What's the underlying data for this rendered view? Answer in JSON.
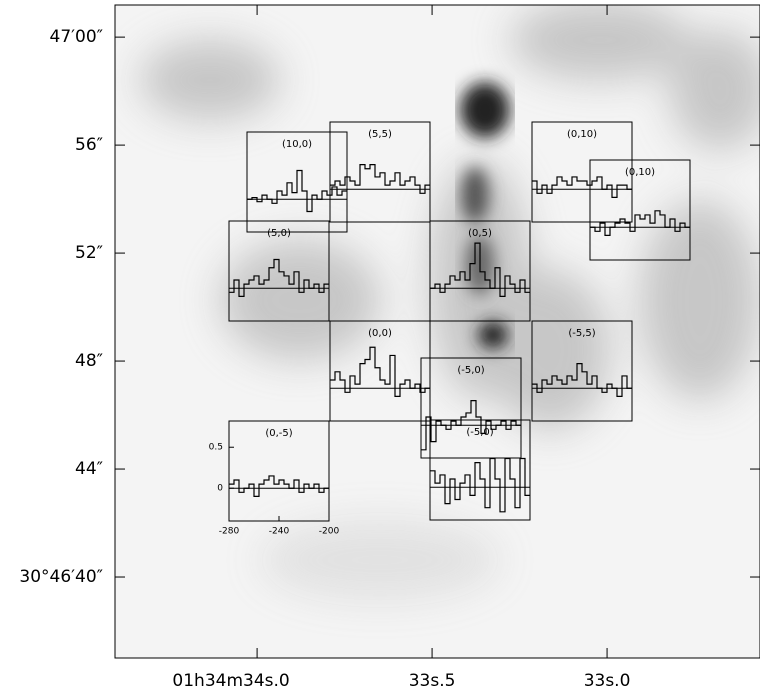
{
  "image": {
    "xlim": [
      34.406,
      32.563
    ],
    "ylim": [
      37.0,
      61.19
    ],
    "xticks": [
      {
        "value": 34.0,
        "label": "01h34m34s.0"
      },
      {
        "value": 33.5,
        "label": "33s.5"
      },
      {
        "value": 33.0,
        "label": "33s.0"
      }
    ],
    "yticks": [
      {
        "value": 60,
        "label": "47′00″"
      },
      {
        "value": 56,
        "label": "56″"
      },
      {
        "value": 52,
        "label": "52″"
      },
      {
        "value": 48,
        "label": "48″"
      },
      {
        "value": 44,
        "label": "44″"
      },
      {
        "value": 40,
        "label": "30°46′40″"
      }
    ]
  },
  "spectra": {
    "xlim": [
      -280,
      -200
    ],
    "ylim": [
      -0.4,
      0.82
    ],
    "xticks": [
      -280,
      -240,
      -200
    ],
    "yticks": [
      0,
      0.5
    ],
    "panels": [
      {
        "label": "(10,0)",
        "values": [
          0,
          0.02,
          -0.03,
          0.05,
          0,
          -0.05,
          0.1,
          0.05,
          0.2,
          0.08,
          0.35,
          0.1,
          -0.15,
          0.05,
          0,
          0.1,
          0.05,
          0.15,
          0.05,
          0.1
        ]
      },
      {
        "label": "(5,5)",
        "values": [
          0.05,
          0.1,
          0.05,
          0.15,
          0.1,
          0.05,
          0.3,
          0.25,
          0.3,
          0.15,
          0.2,
          0.05,
          0.1,
          0.2,
          0.05,
          0.1,
          0.15,
          0.05,
          -0.05,
          0.05
        ]
      },
      {
        "label": "(0,10)",
        "values": [
          0.1,
          -0.05,
          0.05,
          -0.05,
          0.05,
          0.15,
          0.1,
          0.05,
          0.15,
          0.1,
          0.1,
          0.05,
          0.1,
          0.15,
          0,
          0.05,
          -0.1,
          0.05,
          0.05,
          0
        ]
      },
      {
        "label": "(0,10)",
        "values": [
          0,
          -0.05,
          0.05,
          -0.1,
          0,
          0.05,
          0.1,
          0.05,
          -0.05,
          0.15,
          0.1,
          0.15,
          0.05,
          0.2,
          0.15,
          0,
          0.1,
          -0.05,
          0.05,
          0
        ]
      },
      {
        "label": "(5,0)",
        "values": [
          -0.05,
          0.1,
          -0.1,
          0.05,
          0.1,
          0.15,
          0.05,
          0.1,
          0.25,
          0.35,
          0.2,
          0.15,
          0.05,
          0.2,
          -0.05,
          0.1,
          0,
          0.05,
          -0.05,
          0.05
        ]
      },
      {
        "label": "(0,5)",
        "values": [
          0,
          0.05,
          -0.05,
          0.05,
          0.15,
          0.1,
          0.2,
          0.1,
          0.3,
          0.55,
          0.2,
          0.1,
          0,
          0.25,
          -0.1,
          0.15,
          0.05,
          -0.05,
          0.1,
          -0.05
        ]
      },
      {
        "label": "(0,0)",
        "values": [
          0.1,
          0.2,
          0.1,
          -0.05,
          0.15,
          0.05,
          0.3,
          0.35,
          0.5,
          0.25,
          0.1,
          0.05,
          0.4,
          -0.1,
          0.05,
          0.1,
          0,
          0.05,
          -0.05,
          0
        ]
      },
      {
        "label": "(-5,0)",
        "values": [
          -0.3,
          0.1,
          -0.2,
          0.05,
          0,
          -0.05,
          0.05,
          0,
          0.1,
          0.15,
          0.3,
          0.1,
          -0.1,
          0.05,
          -0.05,
          0,
          0.05,
          -0.05,
          0.05,
          0
        ]
      },
      {
        "label": "(-5,5)",
        "values": [
          0.05,
          -0.05,
          0.1,
          0.05,
          0.15,
          0.1,
          0.05,
          0.15,
          0.1,
          0.3,
          0.2,
          0.05,
          0.15,
          0,
          -0.05,
          0.05,
          0,
          -0.1,
          0.15,
          0
        ]
      },
      {
        "label": "(-5,0)",
        "values": [
          0.2,
          0.05,
          0.15,
          -0.2,
          0.1,
          -0.15,
          0.05,
          0.15,
          -0.1,
          0.3,
          0.1,
          -0.25,
          0.35,
          0.1,
          -0.3,
          0.35,
          0.1,
          -0.25,
          0.35,
          -0.1
        ]
      },
      {
        "label": "(0,-5)",
        "values": [
          0.05,
          0.1,
          -0.05,
          0,
          0.05,
          -0.1,
          0.05,
          0.1,
          0.15,
          0.05,
          0.1,
          0.05,
          0,
          0.1,
          -0.05,
          0.05,
          0,
          0.05,
          -0.05,
          0
        ]
      }
    ]
  }
}
